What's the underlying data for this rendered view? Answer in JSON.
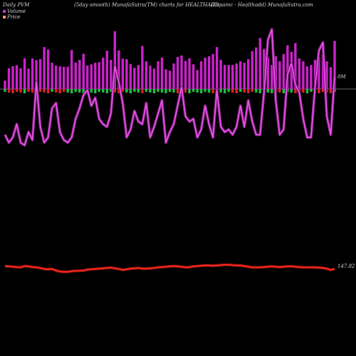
{
  "header": {
    "left": "Daily PVM",
    "middle": "(5day smooth) MunafaSutra(TM) charts for HEALTHADD",
    "right": "(Dspamc - Healthadd) MunafaSutra.com"
  },
  "legend": [
    {
      "label": "Volume",
      "color": "#cc33cc"
    },
    {
      "label": "Price",
      "color": "#ff9966"
    }
  ],
  "chart_data": {
    "type": "line",
    "series": [
      {
        "name": "Volume",
        "color": "#ee55ee",
        "values": [
          84,
          81,
          83,
          88,
          81,
          80,
          85,
          82,
          104,
          87,
          81,
          83,
          94,
          96,
          85,
          82,
          81,
          83,
          90,
          94,
          99,
          101,
          95,
          98,
          90,
          88,
          87,
          92,
          110,
          104,
          96,
          83,
          86,
          93,
          89,
          88,
          96,
          83,
          87,
          92,
          97,
          81,
          85,
          88,
          95,
          102,
          91,
          89,
          90,
          83,
          86,
          95,
          88,
          83,
          101,
          87,
          85,
          86,
          84,
          87,
          95,
          87,
          97,
          89,
          84,
          84,
          100,
          120,
          124,
          97,
          84,
          86,
          107,
          111,
          103,
          100,
          90,
          83,
          83,
          102,
          116,
          119,
          91,
          84,
          106
        ]
      },
      {
        "name": "Price",
        "color": "#ee2211",
        "values": [
          5.4,
          5.3,
          5.2,
          5.1,
          5.0,
          5.4,
          5.3,
          5.1,
          5.0,
          4.8,
          4.5,
          4.4,
          4.5,
          4.0,
          3.7,
          3.6,
          3.6,
          3.8,
          3.9,
          3.9,
          4.0,
          4.3,
          4.4,
          4.5,
          4.6,
          4.7,
          4.8,
          4.9,
          4.7,
          4.5,
          4.2,
          4.4,
          4.6,
          4.7,
          4.8,
          4.6,
          4.6,
          4.7,
          4.8,
          5.0,
          5.1,
          5.2,
          5.3,
          5.4,
          5.3,
          5.2,
          5.0,
          5.1,
          5.3,
          5.4,
          5.5,
          5.6,
          5.6,
          5.5,
          5.6,
          5.7,
          5.8,
          5.8,
          5.7,
          5.6,
          5.6,
          5.4,
          5.2,
          5.0,
          5.0,
          5.0,
          5.1,
          5.2,
          5.3,
          5.2,
          5.1,
          5.2,
          5.3,
          5.3,
          5.2,
          5.1,
          5.0,
          5.0,
          5.0,
          5.0,
          4.9,
          4.8,
          4.6,
          4.2,
          4.5
        ]
      },
      {
        "name": "PVM",
        "color": "#cc33cc",
        "values": [
          11.5,
          28.4,
          31.3,
          32.7,
          28.4,
          42.3,
          28.0,
          41.8,
          39.5,
          41.0,
          57.6,
          54.2,
          36.1,
          32.2,
          31.1,
          30.6,
          30.6,
          53.5,
          36.4,
          40.0,
          48.3,
          32.2,
          33.8,
          36.0,
          36.9,
          43.1,
          52.5,
          40.0,
          79.2,
          52.9,
          41.6,
          41.0,
          34.5,
          29.0,
          33.0,
          59.0,
          38.0,
          32.0,
          28.0,
          38.0,
          43.0,
          27.0,
          25.0,
          35.0,
          44.0,
          46.0,
          38.5,
          42.0,
          34.0,
          26.0,
          38.0,
          43.0,
          45.0,
          48.0,
          57.5,
          40.0,
          33.0,
          33.0,
          33.0,
          35.0,
          38.0,
          36.0,
          41.0,
          52.0,
          57.0,
          70.0,
          55.0,
          43.0,
          33.0,
          45.0,
          38.0,
          48.0,
          60.0,
          51.0,
          63.0,
          42.0,
          38.0,
          31.0,
          33.0,
          40.0,
          43.0,
          48.0,
          38.0,
          30.0,
          66.0
        ]
      }
    ],
    "price_label": "147.82",
    "volume_label": "0M",
    "grid": false,
    "legend_position": "top-left"
  }
}
